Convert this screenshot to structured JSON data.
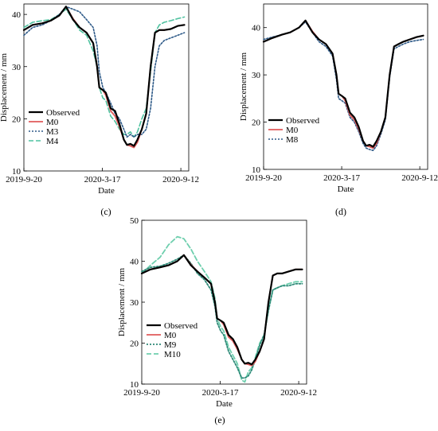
{
  "chart_data": [
    {
      "panel": "(c)",
      "type": "line",
      "xlabel": "Date",
      "ylabel": "Displacement / mm",
      "x_ticks": [
        "2019-9-20",
        "2020-3-17",
        "2020-9-12"
      ],
      "y_ticks": [
        10,
        20,
        30,
        40
      ],
      "ylim": [
        10,
        42
      ],
      "xlim": [
        "2019-9-20",
        "2020-9-30"
      ],
      "grid": false,
      "legend_position": "bottom-left",
      "x": [
        "2019-9-20",
        "2019-10-10",
        "2019-11-01",
        "2019-11-20",
        "2019-12-10",
        "2019-12-25",
        "2020-01-10",
        "2020-01-25",
        "2020-02-10",
        "2020-02-25",
        "2020-03-05",
        "2020-03-10",
        "2020-03-18",
        "2020-03-25",
        "2020-04-05",
        "2020-04-15",
        "2020-04-25",
        "2020-05-05",
        "2020-05-12",
        "2020-05-20",
        "2020-05-28",
        "2020-06-05",
        "2020-06-15",
        "2020-06-25",
        "2020-07-05",
        "2020-07-15",
        "2020-07-25",
        "2020-08-05",
        "2020-08-20",
        "2020-09-05",
        "2020-09-20"
      ],
      "series": [
        {
          "name": "Observed",
          "color": "#000000",
          "dash": "solid",
          "width": 2.2,
          "values": [
            37.0,
            38.0,
            38.3,
            38.8,
            39.8,
            41.5,
            39.0,
            37.5,
            36.5,
            34.5,
            30.0,
            26.0,
            25.5,
            25.0,
            22.0,
            21.5,
            19.0,
            16.0,
            15.0,
            15.2,
            14.8,
            16.0,
            18.0,
            21.0,
            30.0,
            36.5,
            37.0,
            37.0,
            37.2,
            37.8,
            38.0
          ]
        },
        {
          "name": "M0",
          "color": "#e05a5a",
          "dash": "solid",
          "width": 1.8,
          "values": [
            37.0,
            38.0,
            38.3,
            38.8,
            39.8,
            41.5,
            39.2,
            37.5,
            36.5,
            34.5,
            30.0,
            26.0,
            25.5,
            24.5,
            21.5,
            20.5,
            18.5,
            16.0,
            15.0,
            14.8,
            14.5,
            15.5,
            18.0,
            21.0,
            30.0,
            36.5,
            37.0,
            37.0,
            37.2,
            37.8,
            38.0
          ]
        },
        {
          "name": "M3",
          "color": "#2e5a88",
          "dash": "2,2",
          "width": 1.6,
          "values": [
            36.0,
            37.5,
            38.0,
            38.8,
            40.0,
            41.5,
            41.0,
            40.5,
            39.0,
            37.5,
            34.0,
            29.0,
            26.0,
            25.0,
            23.0,
            21.0,
            20.0,
            18.0,
            16.5,
            17.0,
            16.5,
            17.0,
            17.0,
            18.0,
            22.0,
            30.0,
            34.0,
            35.0,
            35.5,
            36.0,
            36.5
          ]
        },
        {
          "name": "M4",
          "color": "#4fc2a0",
          "dash": "6,3",
          "width": 1.6,
          "values": [
            37.5,
            38.5,
            38.8,
            39.0,
            40.0,
            41.0,
            39.0,
            37.0,
            36.0,
            33.0,
            30.0,
            26.0,
            24.0,
            23.5,
            20.5,
            19.5,
            18.0,
            17.0,
            17.0,
            17.5,
            16.5,
            17.5,
            20.0,
            22.0,
            29.0,
            36.5,
            38.0,
            38.5,
            38.8,
            39.2,
            39.5
          ]
        }
      ]
    },
    {
      "panel": "(d)",
      "type": "line",
      "xlabel": "Date",
      "ylabel": "Displacement / mm",
      "x_ticks": [
        "2019-9-20",
        "2020-3-17",
        "2020-9-12"
      ],
      "y_ticks": [
        10,
        20,
        30,
        40
      ],
      "ylim": [
        10,
        45
      ],
      "xlim": [
        "2019-9-20",
        "2020-9-30"
      ],
      "grid": false,
      "legend_position": "bottom-left",
      "x": [
        "2019-9-20",
        "2019-10-10",
        "2019-11-01",
        "2019-11-20",
        "2019-12-10",
        "2019-12-25",
        "2020-01-10",
        "2020-01-25",
        "2020-02-10",
        "2020-02-25",
        "2020-03-05",
        "2020-03-10",
        "2020-03-18",
        "2020-03-25",
        "2020-04-05",
        "2020-04-15",
        "2020-04-25",
        "2020-05-05",
        "2020-05-12",
        "2020-05-20",
        "2020-05-28",
        "2020-06-05",
        "2020-06-15",
        "2020-06-25",
        "2020-07-05",
        "2020-07-15",
        "2020-07-25",
        "2020-08-05",
        "2020-08-20",
        "2020-09-05",
        "2020-09-20"
      ],
      "series": [
        {
          "name": "Observed",
          "color": "#000000",
          "dash": "solid",
          "width": 2.2,
          "values": [
            37.0,
            37.8,
            38.5,
            39.0,
            40.0,
            41.5,
            39.0,
            37.5,
            36.5,
            34.5,
            30.0,
            26.0,
            25.5,
            25.0,
            22.0,
            21.0,
            19.0,
            16.0,
            15.0,
            15.2,
            14.8,
            16.0,
            18.0,
            21.0,
            30.0,
            36.0,
            36.5,
            37.0,
            37.5,
            38.0,
            38.3
          ]
        },
        {
          "name": "M0",
          "color": "#e05a5a",
          "dash": "solid",
          "width": 1.8,
          "values": [
            37.0,
            37.8,
            38.5,
            39.0,
            40.0,
            41.5,
            39.2,
            37.5,
            36.5,
            34.5,
            30.0,
            26.0,
            25.5,
            24.5,
            21.5,
            20.5,
            18.5,
            16.0,
            15.0,
            14.8,
            14.5,
            15.5,
            18.0,
            21.0,
            30.0,
            36.0,
            36.5,
            37.0,
            37.5,
            38.0,
            38.3
          ]
        },
        {
          "name": "M8",
          "color": "#2e5a88",
          "dash": "2,2",
          "width": 1.6,
          "values": [
            37.5,
            38.0,
            38.5,
            39.0,
            40.0,
            41.2,
            39.0,
            37.0,
            36.0,
            34.0,
            29.0,
            25.0,
            24.5,
            24.0,
            21.0,
            20.0,
            18.0,
            15.5,
            14.5,
            14.2,
            14.0,
            15.0,
            17.5,
            20.5,
            29.5,
            35.5,
            36.0,
            36.5,
            37.0,
            37.3,
            37.5
          ]
        }
      ]
    },
    {
      "panel": "(e)",
      "type": "line",
      "xlabel": "Date",
      "ylabel": "Displacement / mm",
      "x_ticks": [
        "2019-9-20",
        "2020-3-17",
        "2020-9-12"
      ],
      "y_ticks": [
        10,
        20,
        30,
        40,
        50
      ],
      "ylim": [
        10,
        50
      ],
      "xlim": [
        "2019-9-20",
        "2020-9-30"
      ],
      "grid": false,
      "legend_position": "bottom-left",
      "x": [
        "2019-9-20",
        "2019-10-10",
        "2019-11-01",
        "2019-11-20",
        "2019-12-10",
        "2019-12-25",
        "2020-01-10",
        "2020-01-25",
        "2020-02-10",
        "2020-02-25",
        "2020-03-05",
        "2020-03-10",
        "2020-03-18",
        "2020-03-25",
        "2020-04-05",
        "2020-04-15",
        "2020-04-25",
        "2020-05-05",
        "2020-05-12",
        "2020-05-20",
        "2020-05-28",
        "2020-06-05",
        "2020-06-15",
        "2020-06-25",
        "2020-07-05",
        "2020-07-15",
        "2020-07-25",
        "2020-08-05",
        "2020-08-20",
        "2020-09-05",
        "2020-09-20"
      ],
      "series": [
        {
          "name": "Observed",
          "color": "#000000",
          "dash": "solid",
          "width": 2.2,
          "values": [
            37.0,
            38.0,
            38.5,
            39.0,
            40.0,
            41.5,
            39.0,
            37.5,
            36.0,
            34.5,
            30.0,
            26.0,
            25.5,
            25.0,
            22.0,
            21.0,
            19.0,
            16.0,
            15.0,
            15.2,
            14.8,
            16.0,
            18.0,
            21.0,
            30.0,
            36.5,
            37.0,
            37.0,
            37.5,
            38.0,
            38.0
          ]
        },
        {
          "name": "M0",
          "color": "#e05a5a",
          "dash": "solid",
          "width": 1.8,
          "values": [
            37.0,
            38.0,
            38.5,
            39.0,
            40.0,
            41.5,
            39.2,
            37.5,
            36.0,
            34.5,
            30.0,
            26.0,
            25.5,
            24.5,
            21.5,
            20.5,
            18.5,
            16.0,
            15.0,
            14.8,
            14.5,
            15.5,
            18.0,
            21.0,
            30.0,
            36.5,
            37.0,
            37.0,
            37.5,
            38.0,
            38.0
          ]
        },
        {
          "name": "M9",
          "color": "#2e8a78",
          "dash": "2,2",
          "width": 1.8,
          "values": [
            37.5,
            38.5,
            38.8,
            39.5,
            40.5,
            41.5,
            39.5,
            37.0,
            35.5,
            33.0,
            29.0,
            25.0,
            23.0,
            22.0,
            18.0,
            16.0,
            14.0,
            11.5,
            11.5,
            12.0,
            13.5,
            16.0,
            19.5,
            22.0,
            28.0,
            33.0,
            33.5,
            34.0,
            34.0,
            34.5,
            34.5
          ]
        },
        {
          "name": "M10",
          "color": "#6fcfae",
          "dash": "6,3",
          "width": 1.8,
          "values": [
            37.0,
            39.0,
            41.0,
            44.0,
            46.0,
            45.5,
            43.0,
            40.0,
            37.5,
            35.0,
            31.0,
            26.0,
            24.0,
            23.0,
            19.0,
            17.0,
            15.0,
            11.0,
            10.5,
            13.0,
            14.0,
            16.5,
            20.0,
            22.0,
            28.0,
            33.0,
            33.5,
            34.0,
            34.5,
            35.0,
            35.0
          ]
        }
      ]
    }
  ]
}
